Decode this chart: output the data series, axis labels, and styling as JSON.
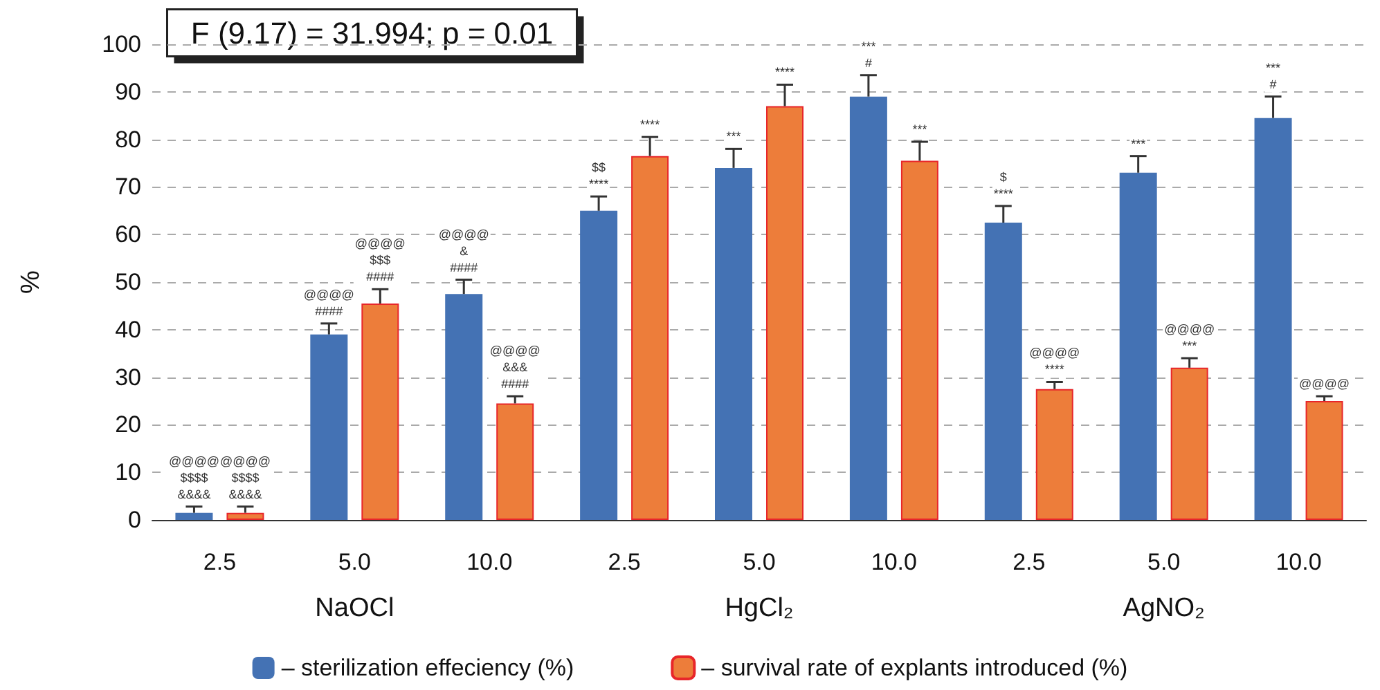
{
  "chart_data": {
    "type": "bar",
    "ylabel": "%",
    "categories": [
      "2.5",
      "5.0",
      "10.0",
      "2.5",
      "5.0",
      "10.0",
      "2.5",
      "5.0",
      "10.0"
    ],
    "series": [
      {
        "name": "– sterilization effeciency (%)",
        "color": "#4472b4",
        "values": [
          1.5,
          39,
          47.5,
          65,
          74,
          89,
          62.5,
          73,
          84.5
        ],
        "errors": [
          [
            1.5,
            2.8
          ],
          [
            39,
            41.3
          ],
          [
            47.5,
            50.5
          ],
          [
            65,
            68
          ],
          [
            74,
            78
          ],
          [
            89,
            93.5
          ],
          [
            62.5,
            66
          ],
          [
            73,
            76.5
          ],
          [
            84.5,
            89
          ]
        ],
        "value_labels": [
          "@@@@\n$$$$\n&&&&",
          "@@@@\n####",
          "@@@@\n&\n####",
          "$$\n****",
          "***",
          "***\n#",
          "$\n****",
          "***",
          "***\n#"
        ]
      },
      {
        "name": "– survival rate of explants introduced (%)",
        "color": "#ed7d3a",
        "values": [
          1.5,
          45.5,
          24.5,
          76.5,
          87,
          75.5,
          27.5,
          32,
          25
        ],
        "errors": [
          [
            1.5,
            2.8
          ],
          [
            45.5,
            48.5
          ],
          [
            24.5,
            26
          ],
          [
            76.5,
            80.5
          ],
          [
            87,
            91.5
          ],
          [
            75.5,
            79.5
          ],
          [
            27.5,
            29
          ],
          [
            32,
            34
          ],
          [
            25,
            26
          ]
        ],
        "value_labels": [
          "@@@@\n$$$$\n&&&&",
          "@@@@\n$$$\n####",
          "@@@@\n&&&\n####",
          "****",
          "****",
          "***",
          "@@@@\n****",
          "@@@@\n***",
          "@@@@"
        ]
      }
    ],
    "annotations": [
      "F (9.17) = 31.994; p = 0.01",
      "NaOCl",
      "HgCl₂",
      "AgNO₂"
    ],
    "ylim": [
      0,
      100
    ],
    "yticks": [
      0,
      10,
      20,
      30,
      40,
      50,
      60,
      70,
      80,
      90,
      100
    ],
    "grid": "y",
    "legend": "bottom"
  }
}
